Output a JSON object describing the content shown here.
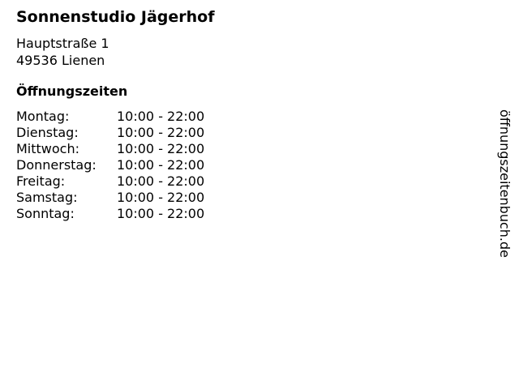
{
  "title": "Sonnenstudio Jägerhof",
  "address": {
    "street": "Hauptstraße 1",
    "city": "49536 Lienen"
  },
  "hours_title": "Öffnungszeiten",
  "hours": [
    {
      "day": "Montag:",
      "time": "10:00 - 22:00"
    },
    {
      "day": "Dienstag:",
      "time": "10:00 - 22:00"
    },
    {
      "day": "Mittwoch:",
      "time": "10:00 - 22:00"
    },
    {
      "day": "Donnerstag:",
      "time": "10:00 - 22:00"
    },
    {
      "day": "Freitag:",
      "time": "10:00 - 22:00"
    },
    {
      "day": "Samstag:",
      "time": "10:00 - 22:00"
    },
    {
      "day": "Sonntag:",
      "time": "10:00 - 22:00"
    }
  ],
  "side_label": "öffnungszeitenbuch.de"
}
